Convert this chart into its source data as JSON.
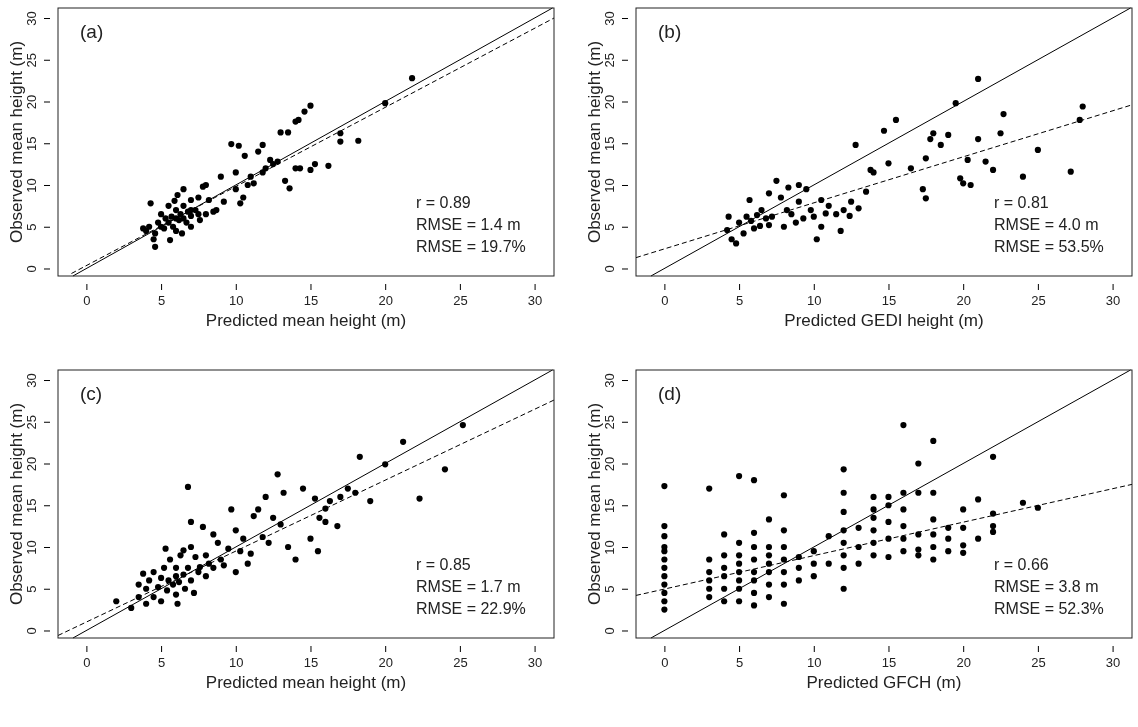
{
  "chart_data": [
    {
      "type": "scatter",
      "xlabel": "Predicted mean height (m)",
      "ylabel": "Observed mean height (m)",
      "xlim": [
        -1.9,
        31.3
      ],
      "ylim": [
        -0.9,
        31.2
      ],
      "xticks": [
        0,
        5,
        10,
        15,
        20,
        25,
        30
      ],
      "yticks": [
        0,
        5,
        10,
        15,
        20,
        25,
        30
      ],
      "marker": "circle",
      "annotations": [
        "(a)",
        "r = 0.89",
        "RMSE = 1.4 m",
        "RMSE = 19.7%"
      ],
      "series": [
        {
          "type": "scatter",
          "color": "#000000",
          "x": [
            21.8,
            20,
            17,
            17,
            18.2,
            15,
            14.6,
            14.2,
            14,
            13.5,
            13,
            12.5,
            12.3,
            12,
            11.8,
            11.5,
            11.8,
            11,
            10.8,
            10.5,
            10.3,
            10,
            10,
            10.2,
            9.7,
            10.6,
            9,
            13.3,
            13.6,
            14.3,
            14,
            15.3,
            15,
            16.2,
            12.8,
            11.2,
            9.2,
            8.7,
            8.2,
            8,
            7.8,
            7.5,
            7,
            7,
            6.5,
            4,
            4.2,
            4.5,
            4.6,
            4.8,
            5,
            5,
            5.2,
            5.3,
            5.5,
            5.5,
            5.7,
            5.8,
            6,
            6,
            6,
            6.2,
            6.3,
            6.5,
            6.5,
            6.7,
            6.8,
            7,
            7,
            7.3,
            7.5,
            3.8,
            4.3,
            4.6,
            5.6,
            6.1,
            5.9,
            6.4,
            7.6,
            8,
            8.5
          ],
          "values": [
            22.8,
            19.8,
            16.2,
            15.2,
            15.3,
            19.5,
            18.8,
            17.8,
            17.6,
            16.3,
            16.3,
            12.5,
            13,
            12,
            14.8,
            14,
            11.5,
            11,
            10,
            8.5,
            7.8,
            9.5,
            11.5,
            14.7,
            14.9,
            13.5,
            11,
            10.5,
            9.6,
            12,
            12,
            12.5,
            11.8,
            12.3,
            12.8,
            10.2,
            8,
            7,
            8.2,
            10,
            9.8,
            8.5,
            8.2,
            7,
            9.5,
            4.5,
            5,
            3.5,
            4.2,
            5.5,
            5,
            6.5,
            4.8,
            6,
            5.5,
            7.5,
            6.2,
            5,
            6,
            7,
            4.5,
            5.8,
            6.5,
            6,
            7.5,
            5.5,
            6.8,
            6.3,
            5,
            7,
            6.5,
            4.8,
            7.8,
            2.6,
            3.4,
            8.8,
            8.1,
            4.2,
            5.8,
            6.5,
            6.8
          ]
        },
        {
          "type": "line",
          "line_style": "solid",
          "color": "#000000",
          "x": [
            -0.9,
            31.2
          ],
          "values": [
            -0.9,
            31.2
          ],
          "marker": "none"
        },
        {
          "type": "line",
          "line_style": "dashed",
          "color": "#000000",
          "x": [
            -1,
            31.3
          ],
          "values": [
            -0.6,
            30.0
          ],
          "marker": "none"
        }
      ]
    },
    {
      "type": "scatter",
      "xlabel": "Predicted GEDI height (m)",
      "ylabel": "Observed mean height (m)",
      "xlim": [
        -1.9,
        31.3
      ],
      "ylim": [
        -0.9,
        31.2
      ],
      "xticks": [
        0,
        5,
        10,
        15,
        20,
        25,
        30
      ],
      "yticks": [
        0,
        5,
        10,
        15,
        20,
        25,
        30
      ],
      "marker": "circle",
      "annotations": [
        "(b)",
        "r = 0.81",
        "RMSE = 4.0 m",
        "RMSE = 53.5%"
      ],
      "series": [
        {
          "type": "scatter",
          "color": "#000000",
          "x": [
            28,
            27.8,
            27.2,
            25,
            24,
            22.7,
            22.5,
            21,
            21,
            21.5,
            22,
            20.5,
            20,
            19.8,
            20.3,
            19.5,
            19,
            18.5,
            18,
            17.8,
            17.5,
            17.3,
            17.5,
            16.5,
            15.5,
            15,
            14.7,
            14,
            13.8,
            13.5,
            13,
            12.8,
            12.5,
            12,
            11.5,
            11,
            10.5,
            10.2,
            10,
            9.8,
            9.5,
            9.3,
            9,
            9,
            8.8,
            8.5,
            8.2,
            8,
            7.8,
            7.5,
            7.2,
            7,
            7,
            6.8,
            6.5,
            6.2,
            6,
            5.8,
            5.5,
            5.3,
            5,
            4.8,
            4.5,
            4.3,
            4.2,
            5.7,
            6.4,
            10.8,
            11.8,
            12.4,
            8.3,
            10.5
          ],
          "values": [
            19.4,
            17.8,
            11.6,
            14.2,
            11,
            18.5,
            16.2,
            22.7,
            15.5,
            12.8,
            11.8,
            10,
            10.2,
            10.8,
            13,
            19.8,
            16,
            14.8,
            16.2,
            15.5,
            13.2,
            9.5,
            8.4,
            12,
            17.8,
            12.6,
            16.5,
            11.5,
            11.8,
            9.2,
            7.2,
            14.8,
            8,
            7,
            6.5,
            7.5,
            5,
            3.5,
            6.2,
            7,
            9.5,
            6,
            10,
            8,
            5.5,
            6.5,
            7,
            5,
            8.5,
            10.5,
            6.2,
            9,
            5.2,
            6,
            7,
            6.4,
            4.8,
            5.7,
            6.2,
            4.2,
            5.5,
            3,
            3.5,
            6.2,
            4.6,
            8.2,
            5.1,
            6.6,
            4.5,
            6.3,
            9.7,
            8.2
          ]
        },
        {
          "type": "line",
          "line_style": "solid",
          "color": "#000000",
          "x": [
            -0.9,
            31.2
          ],
          "values": [
            -0.9,
            31.2
          ],
          "marker": "none"
        },
        {
          "type": "line",
          "line_style": "dashed",
          "color": "#000000",
          "x": [
            -1.9,
            31.3
          ],
          "values": [
            1.3,
            19.6
          ],
          "marker": "none"
        }
      ]
    },
    {
      "type": "scatter",
      "xlabel": "Predicted mean height (m)",
      "ylabel": "Observed mean height (m)",
      "xlim": [
        -1.9,
        31.3
      ],
      "ylim": [
        -0.9,
        31.2
      ],
      "xticks": [
        0,
        5,
        10,
        15,
        20,
        25,
        30
      ],
      "yticks": [
        0,
        5,
        10,
        15,
        20,
        25,
        30
      ],
      "marker": "circle",
      "annotations": [
        "(c)",
        "r = 0.85",
        "RMSE = 1.7 m",
        "RMSE = 22.9%"
      ],
      "series": [
        {
          "type": "scatter",
          "color": "#000000",
          "x": [
            25.2,
            24,
            21.2,
            20,
            19,
            18.3,
            17.5,
            17,
            16.8,
            16.3,
            16,
            15.5,
            15.3,
            15,
            14.5,
            14,
            13.5,
            13.2,
            13,
            12.8,
            12.5,
            12.2,
            12,
            11.8,
            11.5,
            11.2,
            11,
            10.8,
            10.5,
            10.3,
            10,
            10,
            9.7,
            9.5,
            9.2,
            9,
            8.8,
            8.5,
            8.5,
            8,
            8,
            7.8,
            7.6,
            7.3,
            6.8,
            6.5,
            7,
            2,
            3,
            3.5,
            3.5,
            4,
            4,
            4.2,
            4.5,
            4.5,
            4.8,
            5,
            5,
            5.2,
            5.4,
            5.5,
            5.6,
            5.8,
            6,
            6,
            6,
            6.2,
            6.3,
            6.5,
            6.6,
            6.8,
            7,
            7,
            7.2,
            7.5,
            8.2,
            3.8,
            5.3,
            6.1,
            16,
            15.6,
            18,
            22.3
          ],
          "values": [
            24.6,
            19.3,
            22.6,
            19.9,
            15.5,
            20.8,
            17,
            16,
            12.5,
            15.5,
            13,
            9.5,
            15.8,
            11,
            17,
            8.5,
            10,
            16.5,
            12.7,
            18.7,
            13.5,
            10.5,
            16,
            11.2,
            14.5,
            13.7,
            9.2,
            8,
            11,
            9.5,
            12,
            7,
            14.5,
            9.8,
            7.8,
            8.5,
            10.5,
            7.5,
            11.5,
            9,
            6.5,
            12.4,
            7.6,
            8.8,
            17.2,
            9.6,
            13,
            3.5,
            2.7,
            4,
            5.5,
            3.2,
            5,
            6,
            4,
            7,
            5.2,
            3.5,
            6.3,
            7.5,
            4.8,
            6,
            8.5,
            5.5,
            6.5,
            7.5,
            4.3,
            5.8,
            9,
            6.7,
            5,
            7.5,
            6,
            10,
            4.5,
            7,
            8,
            6.8,
            9.8,
            3.2,
            14.6,
            13.5,
            16.5,
            15.8
          ]
        },
        {
          "type": "line",
          "line_style": "solid",
          "color": "#000000",
          "x": [
            -0.9,
            31.2
          ],
          "values": [
            -0.9,
            31.2
          ],
          "marker": "none"
        },
        {
          "type": "line",
          "line_style": "dashed",
          "color": "#000000",
          "x": [
            -1.9,
            31.3
          ],
          "values": [
            -0.6,
            27.6
          ],
          "marker": "none"
        }
      ]
    },
    {
      "type": "scatter",
      "xlabel": "Predicted GFCH (m)",
      "ylabel": "Observed mean height (m)",
      "xlim": [
        -1.9,
        31.3
      ],
      "ylim": [
        -0.9,
        31.2
      ],
      "xticks": [
        0,
        5,
        10,
        15,
        20,
        25,
        30
      ],
      "yticks": [
        0,
        5,
        10,
        15,
        20,
        25,
        30
      ],
      "marker": "circle",
      "annotations": [
        "(d)",
        "r = 0.66",
        "RMSE = 3.8 m",
        "RMSE = 52.3%"
      ],
      "series": [
        {
          "type": "scatter",
          "color": "#000000",
          "x": [
            0,
            0,
            0,
            0,
            0,
            0,
            0,
            0,
            0,
            0,
            0,
            0,
            3,
            3,
            3,
            3,
            3,
            3,
            4,
            4,
            4,
            4,
            4,
            4,
            5,
            5,
            5,
            5,
            5,
            5,
            5,
            5,
            6,
            6,
            6,
            6,
            6,
            6,
            6,
            6,
            7,
            7,
            7,
            7,
            7,
            7,
            7,
            8,
            8,
            8,
            8,
            8,
            8,
            8,
            9,
            9,
            9,
            10,
            10,
            10,
            11,
            11,
            12,
            12,
            12,
            12,
            12,
            12,
            12,
            12,
            13,
            13,
            13,
            14,
            14,
            14,
            14,
            14,
            14,
            15,
            15,
            15,
            15,
            15,
            16,
            16,
            16,
            16,
            16,
            16,
            17,
            17,
            17,
            17,
            17,
            18,
            18,
            18,
            18,
            18,
            18,
            19,
            19,
            19,
            20,
            20,
            20,
            20,
            21,
            21,
            22,
            22,
            22,
            22,
            24,
            25
          ],
          "values": [
            2.5,
            3.5,
            4.5,
            5.5,
            6.5,
            7.5,
            8.5,
            9.5,
            10,
            11.3,
            12.5,
            17.3,
            4,
            5,
            6,
            7,
            8.5,
            17,
            3.5,
            5,
            6.5,
            7.5,
            9,
            11.5,
            3.5,
            5,
            6,
            7,
            8,
            9,
            10.5,
            18.5,
            3,
            4.5,
            6,
            7,
            8.5,
            10,
            11.7,
            18,
            4,
            5.5,
            7,
            8,
            9,
            10,
            13.3,
            3.2,
            5.5,
            7,
            8.5,
            10,
            12,
            16.2,
            6,
            7.5,
            8.8,
            6.5,
            8,
            9.5,
            8,
            11.3,
            5,
            7.5,
            9,
            10.5,
            12,
            14.2,
            16.5,
            19.3,
            8,
            10,
            12.3,
            9,
            10.5,
            12,
            13.5,
            14.5,
            16,
            8.8,
            11,
            13,
            15,
            16,
            9.5,
            11,
            12.5,
            14.5,
            16.5,
            24.6,
            9,
            9.7,
            11.5,
            16.5,
            20,
            8.5,
            10,
            11.5,
            13.3,
            16.5,
            22.7,
            9.5,
            11,
            12.3,
            9.3,
            10.2,
            12.3,
            14.5,
            11,
            15.7,
            11.8,
            12.5,
            14,
            20.8,
            15.3,
            14.7
          ]
        },
        {
          "type": "line",
          "line_style": "solid",
          "color": "#000000",
          "x": [
            -0.9,
            31.2
          ],
          "values": [
            -0.9,
            31.2
          ],
          "marker": "none"
        },
        {
          "type": "line",
          "line_style": "dashed",
          "color": "#000000",
          "x": [
            -1.9,
            31.3
          ],
          "values": [
            4.2,
            17.5
          ],
          "marker": "none"
        }
      ]
    }
  ]
}
